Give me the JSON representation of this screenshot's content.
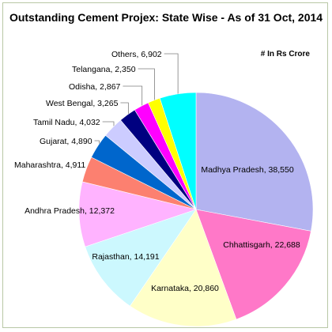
{
  "chart_data": {
    "type": "pie",
    "title": "Outstanding Cement Projex: State Wise - As of 31 Oct, 2014",
    "unit_note": "# In Rs Crore",
    "slices": [
      {
        "label": "Madhya Pradesh",
        "value": 38550,
        "display": "Madhya Pradesh, 38,550",
        "color": "#b3b3f0"
      },
      {
        "label": "Chhattisgarh",
        "value": 22688,
        "display": "Chhattisgarh, 22,688",
        "color": "#ff78c8"
      },
      {
        "label": "Karnataka",
        "value": 20860,
        "display": "Karnataka, 20,860",
        "color": "#ffffc8"
      },
      {
        "label": "Rajasthan",
        "value": 14191,
        "display": "Rajasthan, 14,191",
        "color": "#ccf8fe"
      },
      {
        "label": "Andhra Pradesh",
        "value": 12372,
        "display": "Andhra Pradesh, 12,372",
        "color": "#ffb3ff"
      },
      {
        "label": "Maharashtra",
        "value": 4911,
        "display": "Maharashtra, 4,911",
        "color": "#fc8070"
      },
      {
        "label": "Gujarat",
        "value": 4890,
        "display": "Gujarat, 4,890",
        "color": "#0066cc"
      },
      {
        "label": "Tamil Nadu",
        "value": 4032,
        "display": "Tamil Nadu, 4,032",
        "color": "#ccccff"
      },
      {
        "label": "West Bengal",
        "value": 3265,
        "display": "West Bengal, 3,265",
        "color": "#000080"
      },
      {
        "label": "Odisha",
        "value": 2867,
        "display": "Odisha, 2,867",
        "color": "#ff00ff"
      },
      {
        "label": "Telangana",
        "value": 2350,
        "display": "Telangana, 2,350",
        "color": "#ffff00"
      },
      {
        "label": "Others",
        "value": 6902,
        "display": "Others, 6,902",
        "color": "#00ffff"
      }
    ]
  }
}
